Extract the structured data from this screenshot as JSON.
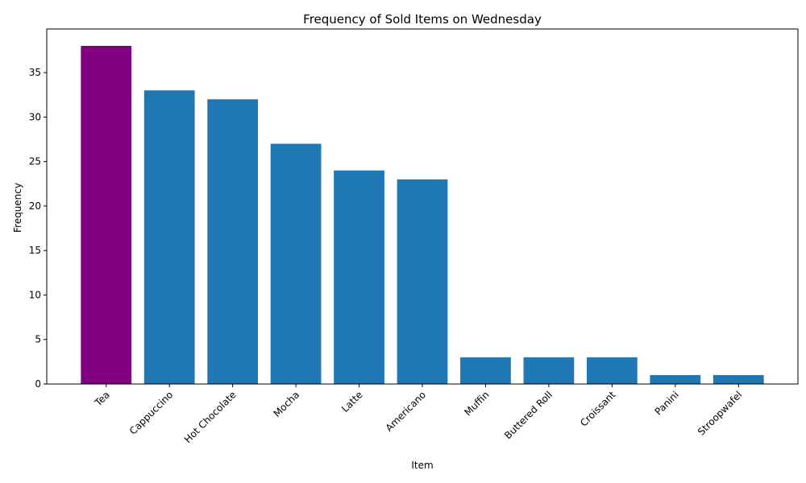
{
  "chart_data": {
    "type": "bar",
    "title": "Frequency of Sold Items on Wednesday",
    "xlabel": "Item",
    "ylabel": "Frequency",
    "categories": [
      "Tea",
      "Cappuccino",
      "Hot Chocolate",
      "Mocha",
      "Latte",
      "Americano",
      "Muffin",
      "Buttered Roll",
      "Croissant",
      "Panini",
      "Stroopwafel"
    ],
    "values": [
      38,
      33,
      32,
      27,
      24,
      23,
      3,
      3,
      3,
      1,
      1
    ],
    "highlight_index": 0,
    "colors": {
      "bar": "#1f77b4",
      "highlight": "#800080",
      "axis": "#000000"
    },
    "ylim": [
      0,
      39.9
    ],
    "yticks": [
      0,
      5,
      10,
      15,
      20,
      25,
      30,
      35
    ],
    "xtick_rotation_deg": 45,
    "grid": false,
    "legend": "none"
  }
}
